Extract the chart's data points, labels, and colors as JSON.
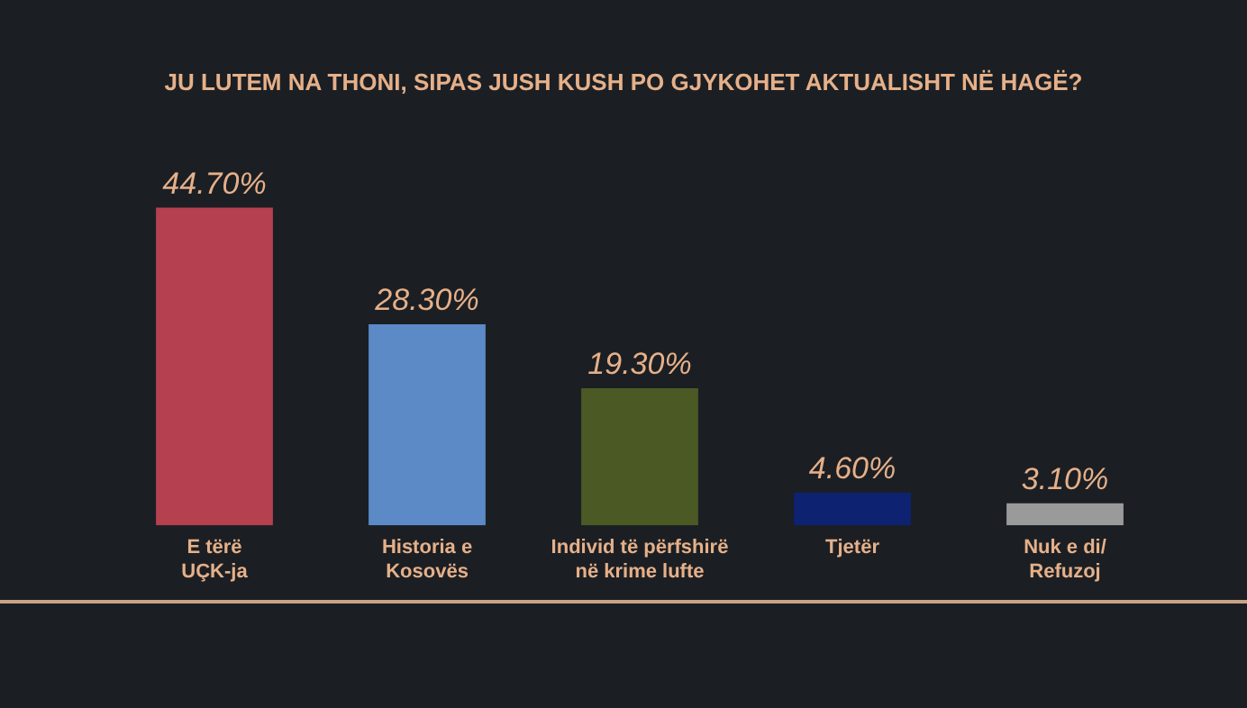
{
  "chart_data": {
    "type": "bar",
    "title": "JU LUTEM NA THONI, SIPAS JUSH KUSH PO GJYKOHET AKTUALISHT NË HAGË?",
    "categories": [
      "E tërë\nUÇK-ja",
      "Historia e\nKosovës",
      "Individ të përfshirë\nnë krime lufte",
      "Tjetër",
      "Nuk e di/\nRefuzoj"
    ],
    "values": [
      44.7,
      28.3,
      19.3,
      4.6,
      3.1
    ],
    "colors": [
      "#b5404f",
      "#5b8ac6",
      "#4b5a24",
      "#0d2270",
      "#9a9a9a"
    ],
    "value_labels": [
      "44.70%",
      "28.30%",
      "19.30%",
      "4.60%",
      "3.10%"
    ],
    "legend": false
  }
}
